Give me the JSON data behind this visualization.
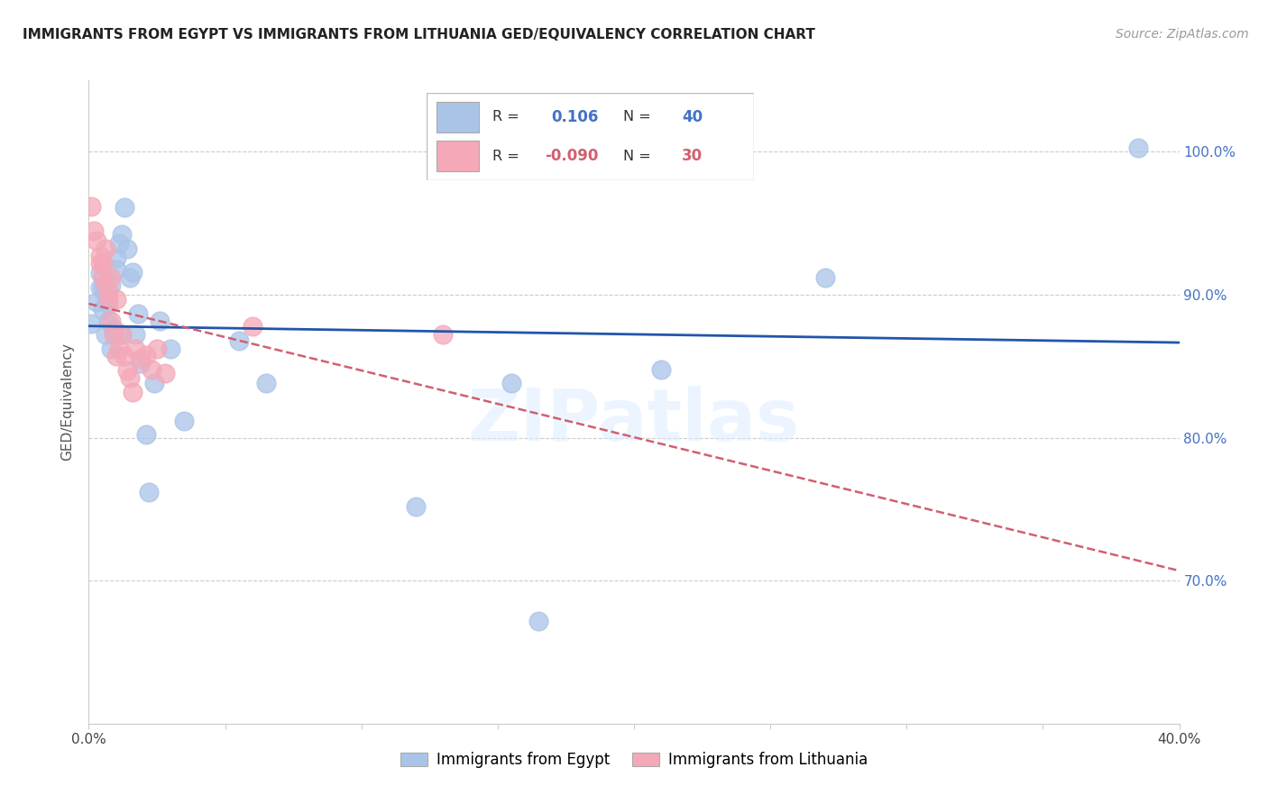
{
  "title": "IMMIGRANTS FROM EGYPT VS IMMIGRANTS FROM LITHUANIA GED/EQUIVALENCY CORRELATION CHART",
  "source": "Source: ZipAtlas.com",
  "ylabel": "GED/Equivalency",
  "xlim": [
    0.0,
    0.4
  ],
  "ylim": [
    0.6,
    1.05
  ],
  "ytick_values": [
    1.0,
    0.9,
    0.8,
    0.7
  ],
  "xtick_positions": [
    0.0,
    0.05,
    0.1,
    0.15,
    0.2,
    0.25,
    0.3,
    0.35,
    0.4
  ],
  "legend_egypt_r": "0.106",
  "legend_egypt_n": "40",
  "legend_lithuania_r": "-0.090",
  "legend_lithuania_n": "30",
  "egypt_color": "#aac4e8",
  "lithuania_color": "#f4a8b8",
  "egypt_line_color": "#2255aa",
  "lithuania_line_color": "#d06070",
  "watermark": "ZIPatlas",
  "egypt_x": [
    0.001,
    0.003,
    0.004,
    0.004,
    0.005,
    0.005,
    0.006,
    0.006,
    0.007,
    0.007,
    0.008,
    0.008,
    0.009,
    0.009,
    0.01,
    0.01,
    0.011,
    0.012,
    0.012,
    0.013,
    0.014,
    0.015,
    0.016,
    0.017,
    0.018,
    0.019,
    0.021,
    0.022,
    0.024,
    0.026,
    0.03,
    0.035,
    0.055,
    0.065,
    0.12,
    0.155,
    0.165,
    0.21,
    0.27,
    0.385
  ],
  "egypt_y": [
    0.88,
    0.895,
    0.915,
    0.905,
    0.89,
    0.905,
    0.872,
    0.9,
    0.882,
    0.894,
    0.862,
    0.907,
    0.876,
    0.875,
    0.918,
    0.926,
    0.936,
    0.872,
    0.942,
    0.961,
    0.932,
    0.912,
    0.916,
    0.872,
    0.887,
    0.852,
    0.802,
    0.762,
    0.838,
    0.882,
    0.862,
    0.812,
    0.868,
    0.838,
    0.752,
    0.838,
    0.672,
    0.848,
    0.912,
    1.003
  ],
  "lithuania_x": [
    0.001,
    0.002,
    0.003,
    0.004,
    0.004,
    0.005,
    0.005,
    0.006,
    0.006,
    0.007,
    0.007,
    0.008,
    0.008,
    0.009,
    0.01,
    0.01,
    0.011,
    0.012,
    0.013,
    0.014,
    0.015,
    0.016,
    0.017,
    0.019,
    0.021,
    0.023,
    0.025,
    0.028,
    0.06,
    0.13
  ],
  "lithuania_y": [
    0.962,
    0.945,
    0.938,
    0.922,
    0.927,
    0.913,
    0.922,
    0.908,
    0.932,
    0.897,
    0.902,
    0.912,
    0.882,
    0.872,
    0.897,
    0.857,
    0.862,
    0.872,
    0.857,
    0.847,
    0.842,
    0.832,
    0.862,
    0.855,
    0.858,
    0.848,
    0.862,
    0.845,
    0.878,
    0.872
  ],
  "gridline_color": "#cccccc",
  "background_color": "#ffffff",
  "title_fontsize": 11,
  "source_fontsize": 10,
  "axis_label_fontsize": 11,
  "tick_fontsize": 11,
  "legend_fontsize": 12
}
